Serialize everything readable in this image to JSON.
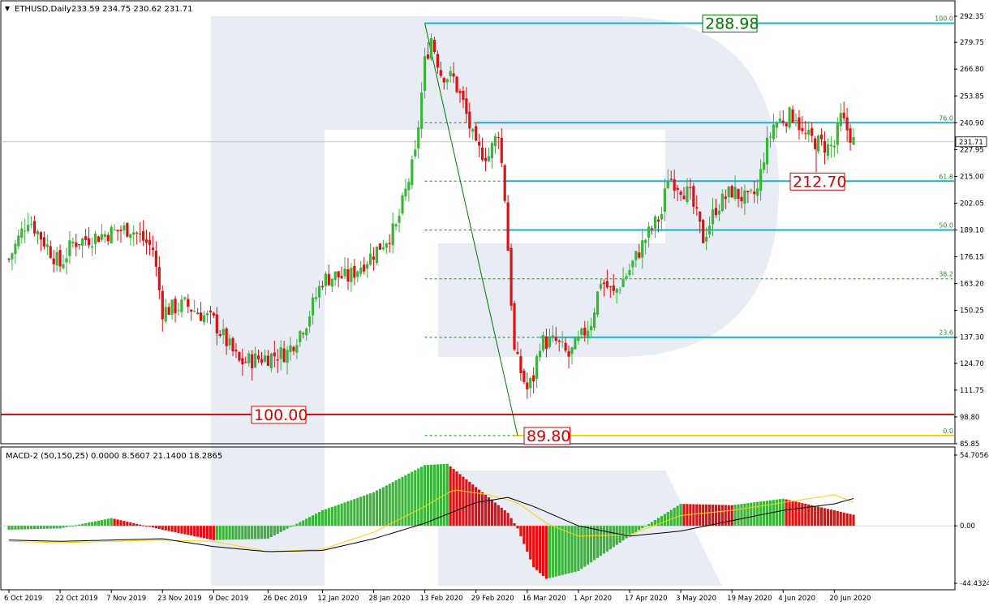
{
  "window": {
    "symbol_label": "ETHUSD,Daily",
    "ohlc_label": "233.59 234.75 230.62 231.71",
    "macd_label": "MACD-2 (50,150,25) 0.0000 8.5607 21.1400 18.2865",
    "menu_arrow": "▼"
  },
  "colors": {
    "bull": "#3cb43c",
    "bear": "#e01010",
    "signal_line": "#ffd000",
    "macd_line": "#000000",
    "fib_line": "#1ab0d0",
    "fib_dotted": "#00a000",
    "support_line": "#e00000",
    "watermark": "#e8edf5"
  },
  "chart_data": [
    {
      "type": "candlestick",
      "title": "ETHUSD,Daily",
      "y_ticks": [
        "292.35",
        "279.75",
        "266.80",
        "253.85",
        "240.90",
        "227.95",
        "215.00",
        "202.05",
        "189.10",
        "176.15",
        "163.20",
        "150.25",
        "137.30",
        "124.70",
        "111.75",
        "98.80",
        "85.85"
      ],
      "x_ticks": [
        "6 Oct 2019",
        "22 Oct 2019",
        "7 Nov 2019",
        "23 Nov 2019",
        "9 Dec 2019",
        "26 Dec 2019",
        "12 Jan 2020",
        "28 Jan 2020",
        "13 Feb 2020",
        "29 Feb 2020",
        "16 Mar 2020",
        "1 Apr 2020",
        "17 Apr 2020",
        "3 May 2020",
        "19 May 2020",
        "4 Jun 2020",
        "20 Jun 2020"
      ],
      "ylim": [
        85.85,
        292.35
      ],
      "current_price": "231.71",
      "fibonacci_levels": [
        {
          "label": "100.0",
          "value": 288.98
        },
        {
          "label": "76.0",
          "value": 240.9
        },
        {
          "label": "61.8",
          "value": 212.7
        },
        {
          "label": "50.0",
          "value": 189.1
        },
        {
          "label": "38.2",
          "value": 165.5
        },
        {
          "label": "23.6",
          "value": 137.3
        },
        {
          "label": "0.0",
          "value": 89.8
        }
      ],
      "annotations": [
        {
          "text": "288.98",
          "value": 288.98,
          "color": "#007a00"
        },
        {
          "text": "212.70",
          "value": 212.7,
          "color": "#e00000"
        },
        {
          "text": "100.00",
          "value": 100.0,
          "color": "#e00000"
        },
        {
          "text": "89.80",
          "value": 89.8,
          "color": "#e00000"
        }
      ],
      "support_level": 100.0,
      "anchors": [
        {
          "date": "6 Oct 2019",
          "close": 175
        },
        {
          "date": "12 Oct 2019",
          "close": 195
        },
        {
          "date": "22 Oct 2019",
          "close": 172
        },
        {
          "date": "26 Oct 2019",
          "close": 183
        },
        {
          "date": "7 Nov 2019",
          "close": 188
        },
        {
          "date": "13 Nov 2019",
          "close": 190
        },
        {
          "date": "20 Nov 2019",
          "close": 180
        },
        {
          "date": "23 Nov 2019",
          "close": 150
        },
        {
          "date": "30 Nov 2019",
          "close": 153
        },
        {
          "date": "9 Dec 2019",
          "close": 145
        },
        {
          "date": "17 Dec 2019",
          "close": 125
        },
        {
          "date": "26 Dec 2019",
          "close": 128
        },
        {
          "date": "1 Jan 2020",
          "close": 130
        },
        {
          "date": "7 Jan 2020",
          "close": 145
        },
        {
          "date": "12 Jan 2020",
          "close": 165
        },
        {
          "date": "16 Jan 2020",
          "close": 167
        },
        {
          "date": "20 Jan 2020",
          "close": 166
        },
        {
          "date": "28 Jan 2020",
          "close": 178
        },
        {
          "date": "4 Feb 2020",
          "close": 190
        },
        {
          "date": "10 Feb 2020",
          "close": 225
        },
        {
          "date": "13 Feb 2020",
          "close": 270
        },
        {
          "date": "15 Feb 2020",
          "close": 282
        },
        {
          "date": "18 Feb 2020",
          "close": 265
        },
        {
          "date": "22 Feb 2020",
          "close": 262
        },
        {
          "date": "25 Feb 2020",
          "close": 250
        },
        {
          "date": "29 Feb 2020",
          "close": 228
        },
        {
          "date": "4 Mar 2020",
          "close": 225
        },
        {
          "date": "7 Mar 2020",
          "close": 237
        },
        {
          "date": "9 Mar 2020",
          "close": 205
        },
        {
          "date": "12 Mar 2020",
          "close": 130
        },
        {
          "date": "13 Mar 2020",
          "close": 125
        },
        {
          "date": "16 Mar 2020",
          "close": 112
        },
        {
          "date": "18 Mar 2020",
          "close": 118
        },
        {
          "date": "20 Mar 2020",
          "close": 135
        },
        {
          "date": "25 Mar 2020",
          "close": 135
        },
        {
          "date": "29 Mar 2020",
          "close": 128
        },
        {
          "date": "1 Apr 2020",
          "close": 135
        },
        {
          "date": "5 Apr 2020",
          "close": 145
        },
        {
          "date": "8 Apr 2020",
          "close": 165
        },
        {
          "date": "12 Apr 2020",
          "close": 158
        },
        {
          "date": "17 Apr 2020",
          "close": 170
        },
        {
          "date": "22 Apr 2020",
          "close": 185
        },
        {
          "date": "27 Apr 2020",
          "close": 197
        },
        {
          "date": "29 Apr 2020",
          "close": 215
        },
        {
          "date": "3 May 2020",
          "close": 210
        },
        {
          "date": "6 May 2020",
          "close": 205
        },
        {
          "date": "10 May 2020",
          "close": 185
        },
        {
          "date": "14 May 2020",
          "close": 200
        },
        {
          "date": "19 May 2020",
          "close": 208
        },
        {
          "date": "24 May 2020",
          "close": 203
        },
        {
          "date": "27 May 2020",
          "close": 208
        },
        {
          "date": "29 May 2020",
          "close": 225
        },
        {
          "date": "1 Jun 2020",
          "close": 240
        },
        {
          "date": "4 Jun 2020",
          "close": 243
        },
        {
          "date": "8 Jun 2020",
          "close": 245
        },
        {
          "date": "10 Jun 2020",
          "close": 235
        },
        {
          "date": "14 Jun 2020",
          "close": 232
        },
        {
          "date": "18 Jun 2020",
          "close": 229
        },
        {
          "date": "20 Jun 2020",
          "close": 230
        },
        {
          "date": "22 Jun 2020",
          "close": 243
        },
        {
          "date": "25 Jun 2020",
          "close": 235
        },
        {
          "date": "26 Jun 2020",
          "close": 231.71
        }
      ]
    },
    {
      "type": "bar",
      "title": "MACD-2 (50,150,25)",
      "y_ticks": [
        "54.7056",
        "0.00",
        "-44.4324"
      ],
      "ylim": [
        -44.4324,
        54.7056
      ],
      "histogram_profile": [
        {
          "date": "6 Oct 2019",
          "value": -3
        },
        {
          "date": "22 Oct 2019",
          "value": -2
        },
        {
          "date": "7 Nov 2019",
          "value": 6
        },
        {
          "date": "23 Nov 2019",
          "value": -3
        },
        {
          "date": "9 Dec 2019",
          "value": -11
        },
        {
          "date": "26 Dec 2019",
          "value": -10
        },
        {
          "date": "12 Jan 2020",
          "value": 12
        },
        {
          "date": "28 Jan 2020",
          "value": 26
        },
        {
          "date": "13 Feb 2020",
          "value": 47
        },
        {
          "date": "20 Feb 2020",
          "value": 48
        },
        {
          "date": "29 Feb 2020",
          "value": 30
        },
        {
          "date": "10 Mar 2020",
          "value": 10
        },
        {
          "date": "13 Mar 2020",
          "value": -2
        },
        {
          "date": "18 Mar 2020",
          "value": -32
        },
        {
          "date": "22 Mar 2020",
          "value": -41
        },
        {
          "date": "1 Apr 2020",
          "value": -35
        },
        {
          "date": "17 Apr 2020",
          "value": -8
        },
        {
          "date": "3 May 2020",
          "value": 17
        },
        {
          "date": "19 May 2020",
          "value": 16
        },
        {
          "date": "4 Jun 2020",
          "value": 21
        },
        {
          "date": "20 Jun 2020",
          "value": 12
        },
        {
          "date": "26 Jun 2020",
          "value": 8.56
        }
      ],
      "macd_line": [
        {
          "date": "6 Oct 2019",
          "value": -11
        },
        {
          "date": "22 Oct 2019",
          "value": -12
        },
        {
          "date": "23 Nov 2019",
          "value": -10
        },
        {
          "date": "9 Dec 2019",
          "value": -16
        },
        {
          "date": "26 Dec 2019",
          "value": -20
        },
        {
          "date": "12 Jan 2020",
          "value": -19
        },
        {
          "date": "28 Jan 2020",
          "value": -10
        },
        {
          "date": "13 Feb 2020",
          "value": 2
        },
        {
          "date": "29 Feb 2020",
          "value": 18
        },
        {
          "date": "10 Mar 2020",
          "value": 22
        },
        {
          "date": "18 Mar 2020",
          "value": 15
        },
        {
          "date": "1 Apr 2020",
          "value": 0
        },
        {
          "date": "17 Apr 2020",
          "value": -8
        },
        {
          "date": "3 May 2020",
          "value": -4
        },
        {
          "date": "19 May 2020",
          "value": 4
        },
        {
          "date": "4 Jun 2020",
          "value": 12
        },
        {
          "date": "20 Jun 2020",
          "value": 17
        },
        {
          "date": "26 Jun 2020",
          "value": 21.14
        }
      ],
      "signal_line": [
        {
          "date": "6 Oct 2019",
          "value": -12
        },
        {
          "date": "22 Oct 2019",
          "value": -13
        },
        {
          "date": "23 Nov 2019",
          "value": -11
        },
        {
          "date": "9 Dec 2019",
          "value": -12
        },
        {
          "date": "26 Dec 2019",
          "value": -20
        },
        {
          "date": "12 Jan 2020",
          "value": -18
        },
        {
          "date": "28 Jan 2020",
          "value": -5
        },
        {
          "date": "13 Feb 2020",
          "value": 15
        },
        {
          "date": "22 Feb 2020",
          "value": 28
        },
        {
          "date": "4 Mar 2020",
          "value": 24
        },
        {
          "date": "13 Mar 2020",
          "value": 18
        },
        {
          "date": "22 Mar 2020",
          "value": 2
        },
        {
          "date": "1 Apr 2020",
          "value": -8
        },
        {
          "date": "17 Apr 2020",
          "value": -7
        },
        {
          "date": "3 May 2020",
          "value": 8
        },
        {
          "date": "19 May 2020",
          "value": 12
        },
        {
          "date": "4 Jun 2020",
          "value": 18
        },
        {
          "date": "20 Jun 2020",
          "value": 24
        },
        {
          "date": "26 Jun 2020",
          "value": 18.2865
        }
      ]
    }
  ]
}
